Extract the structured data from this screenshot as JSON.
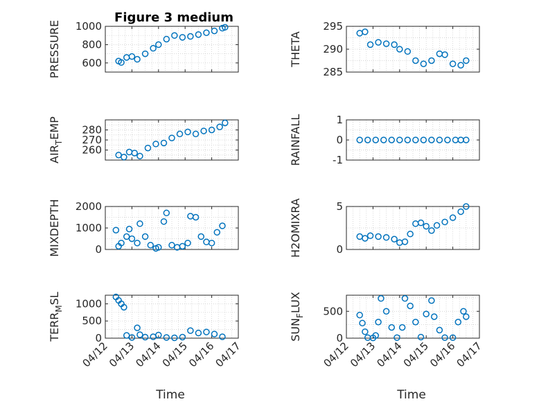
{
  "figure": {
    "title": "Figure 3 medium"
  },
  "colors": {
    "marker": "#0072BD",
    "axis": "#262626",
    "grid": "#c8c8c8"
  },
  "chart_data": [
    {
      "type": "scatter",
      "ylabel": "PRESSURE",
      "title": "Figure 3 medium",
      "ylim": [
        500,
        1000
      ],
      "yticks": [
        600,
        800,
        1000
      ],
      "xlim": [
        "04/12",
        "04/17"
      ],
      "xticks": [
        "04/12",
        "04/13",
        "04/14",
        "04/15",
        "04/16",
        "04/17"
      ],
      "show_xticklabels": false,
      "grid": true,
      "x": [
        "04/12.5",
        "04/12.6",
        "04/12.8",
        "04/13.0",
        "04/13.2",
        "04/13.5",
        "04/13.8",
        "04/14.0",
        "04/14.3",
        "04/14.6",
        "04/14.9",
        "04/15.2",
        "04/15.5",
        "04/15.8",
        "04/16.1",
        "04/16.4",
        "04/16.5"
      ],
      "y": [
        620,
        605,
        660,
        670,
        640,
        700,
        760,
        800,
        860,
        900,
        880,
        890,
        910,
        930,
        950,
        980,
        990
      ]
    },
    {
      "type": "scatter",
      "ylabel": "THETA",
      "ylim": [
        285,
        295
      ],
      "yticks": [
        285,
        290,
        295
      ],
      "xlim": [
        "04/12",
        "04/17"
      ],
      "xticks": [
        "04/12",
        "04/13",
        "04/14",
        "04/15",
        "04/16",
        "04/17"
      ],
      "show_xticklabels": false,
      "grid": true,
      "x": [
        "04/12.5",
        "04/12.7",
        "04/12.9",
        "04/13.2",
        "04/13.5",
        "04/13.8",
        "04/14.0",
        "04/14.3",
        "04/14.6",
        "04/14.9",
        "04/15.2",
        "04/15.5",
        "04/15.7",
        "04/16.0",
        "04/16.3",
        "04/16.5"
      ],
      "y": [
        293.5,
        293.8,
        291.0,
        291.5,
        291.2,
        291.0,
        290.0,
        289.5,
        287.5,
        286.8,
        287.5,
        289.0,
        288.8,
        286.8,
        286.5,
        287.5
      ]
    },
    {
      "type": "scatter",
      "ylabel": "AIRTEMP",
      "ylabel_parts": [
        "AIR",
        "T",
        "EMP"
      ],
      "ylim": [
        250,
        290
      ],
      "yticks": [
        260,
        270,
        280
      ],
      "xlim": [
        "04/12",
        "04/17"
      ],
      "xticks": [
        "04/12",
        "04/13",
        "04/14",
        "04/15",
        "04/16",
        "04/17"
      ],
      "show_xticklabels": false,
      "grid": true,
      "x": [
        "04/12.5",
        "04/12.7",
        "04/12.9",
        "04/13.1",
        "04/13.3",
        "04/13.6",
        "04/13.9",
        "04/14.2",
        "04/14.5",
        "04/14.8",
        "04/15.1",
        "04/15.4",
        "04/15.7",
        "04/16.0",
        "04/16.3",
        "04/16.5"
      ],
      "y": [
        255,
        253,
        258,
        257,
        254,
        262,
        266,
        267,
        272,
        276,
        278,
        276,
        279,
        280,
        283,
        287
      ]
    },
    {
      "type": "scatter",
      "ylabel": "RAINFALL",
      "ylim": [
        -1,
        1
      ],
      "yticks": [
        -1,
        0,
        1
      ],
      "xlim": [
        "04/12",
        "04/17"
      ],
      "xticks": [
        "04/12",
        "04/13",
        "04/14",
        "04/15",
        "04/16",
        "04/17"
      ],
      "show_xticklabels": false,
      "grid": true,
      "x": [
        "04/12.5",
        "04/12.8",
        "04/13.1",
        "04/13.4",
        "04/13.7",
        "04/14.0",
        "04/14.3",
        "04/14.6",
        "04/14.9",
        "04/15.2",
        "04/15.5",
        "04/15.8",
        "04/16.1",
        "04/16.3",
        "04/16.5"
      ],
      "y": [
        0,
        0,
        0,
        0,
        0,
        0,
        0,
        0,
        0,
        0,
        0,
        0,
        0,
        0,
        0
      ]
    },
    {
      "type": "scatter",
      "ylabel": "MIXDEPTH",
      "ylim": [
        0,
        2000
      ],
      "yticks": [
        0,
        1000,
        2000
      ],
      "xlim": [
        "04/12",
        "04/17"
      ],
      "xticks": [
        "04/12",
        "04/13",
        "04/14",
        "04/15",
        "04/16",
        "04/17"
      ],
      "show_xticklabels": false,
      "grid": true,
      "x": [
        "04/12.4",
        "04/12.5",
        "04/12.6",
        "04/12.8",
        "04/12.9",
        "04/13.0",
        "04/13.2",
        "04/13.3",
        "04/13.5",
        "04/13.7",
        "04/13.9",
        "04/14.0",
        "04/14.2",
        "04/14.3",
        "04/14.5",
        "04/14.7",
        "04/14.9",
        "04/15.1",
        "04/15.2",
        "04/15.4",
        "04/15.6",
        "04/15.8",
        "04/16.0",
        "04/16.2",
        "04/16.4"
      ],
      "y": [
        900,
        150,
        300,
        600,
        950,
        500,
        300,
        1200,
        600,
        200,
        50,
        100,
        1300,
        1700,
        200,
        100,
        150,
        300,
        1550,
        1500,
        600,
        350,
        300,
        800,
        1100
      ]
    },
    {
      "type": "scatter",
      "ylabel": "H2OMIXRA",
      "ylim": [
        0,
        5
      ],
      "yticks": [
        0,
        5
      ],
      "xlim": [
        "04/12",
        "04/17"
      ],
      "xticks": [
        "04/12",
        "04/13",
        "04/14",
        "04/15",
        "04/16",
        "04/17"
      ],
      "show_xticklabels": false,
      "grid": true,
      "x": [
        "04/12.5",
        "04/12.7",
        "04/12.9",
        "04/13.2",
        "04/13.5",
        "04/13.8",
        "04/14.0",
        "04/14.2",
        "04/14.4",
        "04/14.6",
        "04/14.8",
        "04/15.0",
        "04/15.2",
        "04/15.4",
        "04/15.7",
        "04/16.0",
        "04/16.3",
        "04/16.5"
      ],
      "y": [
        1.5,
        1.3,
        1.6,
        1.5,
        1.4,
        1.2,
        0.8,
        0.9,
        1.8,
        3.0,
        3.1,
        2.7,
        2.2,
        2.8,
        3.2,
        3.7,
        4.4,
        5.0
      ]
    },
    {
      "type": "scatter",
      "ylabel": "TERRMSL",
      "ylabel_parts": [
        "TERR",
        "M",
        "SL"
      ],
      "ylim": [
        0,
        1250
      ],
      "yticks": [
        0,
        500,
        1000
      ],
      "xlim": [
        "04/12",
        "04/17"
      ],
      "xticks": [
        "04/12",
        "04/13",
        "04/14",
        "04/15",
        "04/16",
        "04/17"
      ],
      "xticklabels": [
        "04/12",
        "04/13",
        "04/14",
        "04/15",
        "04/16",
        "04/17"
      ],
      "show_xticklabels": true,
      "xlabel": "Time",
      "grid": true,
      "x": [
        "04/12.4",
        "04/12.5",
        "04/12.6",
        "04/12.7",
        "04/12.8",
        "04/13.0",
        "04/13.2",
        "04/13.3",
        "04/13.5",
        "04/13.8",
        "04/14.0",
        "04/14.3",
        "04/14.6",
        "04/14.9",
        "04/15.2",
        "04/15.5",
        "04/15.8",
        "04/16.1",
        "04/16.4"
      ],
      "y": [
        1200,
        1100,
        1000,
        900,
        80,
        20,
        300,
        100,
        30,
        40,
        90,
        20,
        10,
        30,
        220,
        150,
        180,
        120,
        40
      ]
    },
    {
      "type": "scatter",
      "ylabel": "SUNFLUX",
      "ylabel_parts": [
        "SUN",
        "F",
        "LUX"
      ],
      "ylim": [
        0,
        800
      ],
      "yticks": [
        0,
        500
      ],
      "xlim": [
        "04/12",
        "04/17"
      ],
      "xticks": [
        "04/12",
        "04/13",
        "04/14",
        "04/15",
        "04/16",
        "04/17"
      ],
      "xticklabels": [
        "04/12",
        "04/13",
        "04/14",
        "04/15",
        "04/16",
        "04/17"
      ],
      "show_xticklabels": true,
      "xlabel": "Time",
      "grid": true,
      "x": [
        "04/12.5",
        "04/12.6",
        "04/12.7",
        "04/12.8",
        "04/13.0",
        "04/13.1",
        "04/13.2",
        "04/13.3",
        "04/13.5",
        "04/13.7",
        "04/13.9",
        "04/14.1",
        "04/14.2",
        "04/14.4",
        "04/14.6",
        "04/14.8",
        "04/15.0",
        "04/15.2",
        "04/15.3",
        "04/15.5",
        "04/15.7",
        "04/16.0",
        "04/16.2",
        "04/16.4",
        "04/16.5"
      ],
      "y": [
        430,
        280,
        120,
        10,
        5,
        50,
        300,
        740,
        500,
        200,
        10,
        200,
        740,
        600,
        300,
        20,
        450,
        700,
        400,
        150,
        10,
        10,
        300,
        500,
        400
      ]
    }
  ]
}
